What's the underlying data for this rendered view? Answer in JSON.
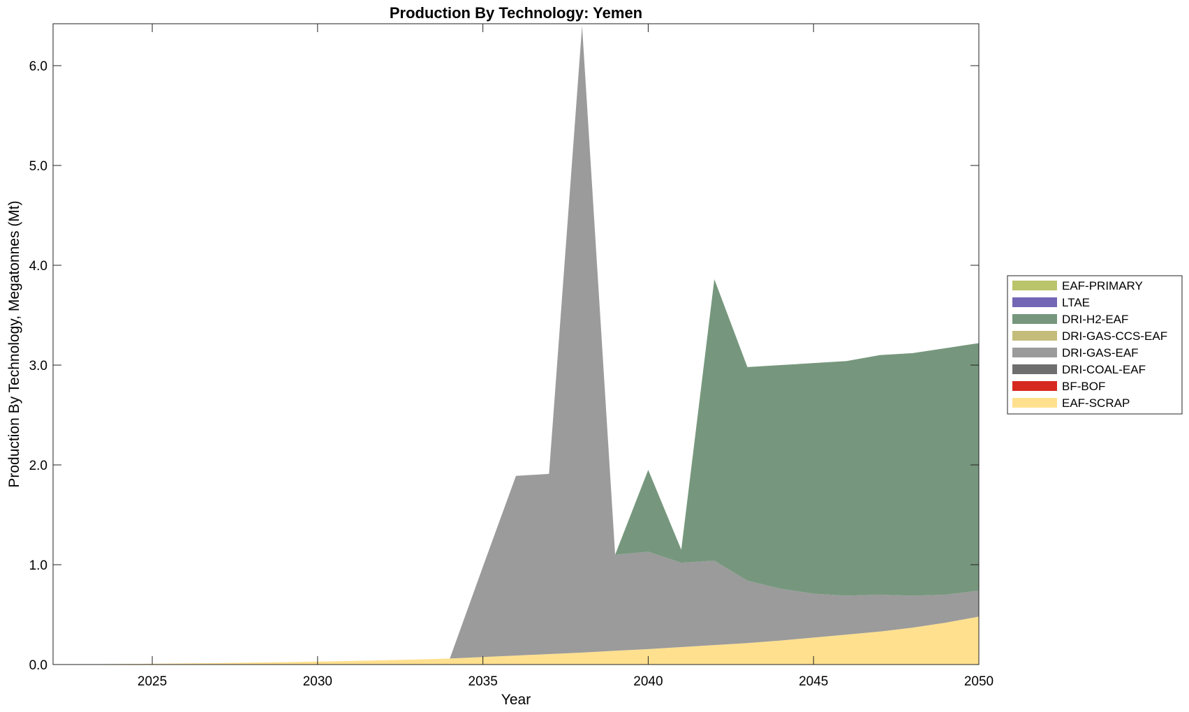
{
  "chart_data": {
    "type": "area",
    "title": "Production By Technology: Yemen",
    "xlabel": "Year",
    "ylabel": "Production By Technology, Megatonnes (Mt)",
    "xlim": [
      2022,
      2050
    ],
    "ylim": [
      0,
      6.42
    ],
    "x_ticks": [
      "2025",
      "2030",
      "2035",
      "2040",
      "2045",
      "2050"
    ],
    "x_tick_values": [
      2025,
      2030,
      2035,
      2040,
      2045,
      2050
    ],
    "y_ticks": [
      "0.0",
      "1.0",
      "2.0",
      "3.0",
      "4.0",
      "5.0",
      "6.0"
    ],
    "y_tick_values": [
      0,
      1,
      2,
      3,
      4,
      5,
      6
    ],
    "grid": false,
    "stacked": true,
    "legend_position": "right",
    "legend": [
      "EAF-PRIMARY",
      "LTAE",
      "DRI-H2-EAF",
      "DRI-GAS-CCS-EAF",
      "DRI-GAS-EAF",
      "DRI-COAL-EAF",
      "BF-BOF",
      "EAF-SCRAP"
    ],
    "x": [
      2022,
      2023,
      2024,
      2025,
      2026,
      2027,
      2028,
      2029,
      2030,
      2031,
      2032,
      2033,
      2034,
      2035,
      2036,
      2037,
      2038,
      2039,
      2040,
      2041,
      2042,
      2043,
      2044,
      2045,
      2046,
      2047,
      2048,
      2049,
      2050
    ],
    "series": [
      {
        "name": "EAF-SCRAP",
        "color": "#FFE08F",
        "values": [
          0.0,
          0.002,
          0.005,
          0.008,
          0.011,
          0.015,
          0.019,
          0.024,
          0.03,
          0.036,
          0.043,
          0.051,
          0.06,
          0.075,
          0.09,
          0.105,
          0.12,
          0.138,
          0.155,
          0.175,
          0.195,
          0.215,
          0.24,
          0.27,
          0.3,
          0.33,
          0.37,
          0.42,
          0.48
        ]
      },
      {
        "name": "BF-BOF",
        "color": "#D6291F",
        "values": [
          0,
          0,
          0,
          0,
          0,
          0,
          0,
          0,
          0,
          0,
          0,
          0,
          0,
          0,
          0,
          0,
          0,
          0,
          0,
          0,
          0,
          0,
          0,
          0,
          0,
          0,
          0,
          0,
          0
        ]
      },
      {
        "name": "DRI-COAL-EAF",
        "color": "#6E6E6E",
        "values": [
          0,
          0,
          0,
          0,
          0,
          0,
          0,
          0,
          0,
          0,
          0,
          0,
          0,
          0,
          0,
          0,
          0,
          0,
          0,
          0,
          0,
          0,
          0,
          0,
          0,
          0,
          0,
          0,
          0
        ]
      },
      {
        "name": "DRI-GAS-EAF",
        "color": "#9B9B9B",
        "values": [
          0,
          0,
          0,
          0,
          0,
          0,
          0,
          0,
          0,
          0,
          0,
          0,
          0,
          0.905,
          1.8,
          1.805,
          6.28,
          0.962,
          0.975,
          0.845,
          0.845,
          0.625,
          0.52,
          0.44,
          0.39,
          0.37,
          0.32,
          0.28,
          0.26
        ]
      },
      {
        "name": "DRI-GAS-CCS-EAF",
        "color": "#C4BC7A",
        "values": [
          0,
          0,
          0,
          0,
          0,
          0,
          0,
          0,
          0,
          0,
          0,
          0,
          0,
          0,
          0,
          0,
          0,
          0,
          0,
          0,
          0,
          0,
          0,
          0,
          0,
          0,
          0,
          0,
          0
        ]
      },
      {
        "name": "DRI-H2-EAF",
        "color": "#76977D",
        "values": [
          0,
          0,
          0,
          0,
          0,
          0,
          0,
          0,
          0,
          0,
          0,
          0,
          0,
          0,
          0,
          0,
          0,
          0,
          0.82,
          0.13,
          2.82,
          2.14,
          2.24,
          2.31,
          2.35,
          2.4,
          2.43,
          2.47,
          2.48
        ]
      },
      {
        "name": "LTAE",
        "color": "#7366B5",
        "values": [
          0,
          0,
          0,
          0,
          0,
          0,
          0,
          0,
          0,
          0,
          0,
          0,
          0,
          0,
          0,
          0,
          0,
          0,
          0,
          0,
          0,
          0,
          0,
          0,
          0,
          0,
          0,
          0,
          0
        ]
      },
      {
        "name": "EAF-PRIMARY",
        "color": "#BAC46A",
        "values": [
          0,
          0,
          0,
          0,
          0,
          0,
          0,
          0,
          0,
          0,
          0,
          0,
          0,
          0,
          0,
          0,
          0,
          0,
          0,
          0,
          0,
          0,
          0,
          0,
          0,
          0,
          0,
          0,
          0
        ]
      }
    ]
  }
}
